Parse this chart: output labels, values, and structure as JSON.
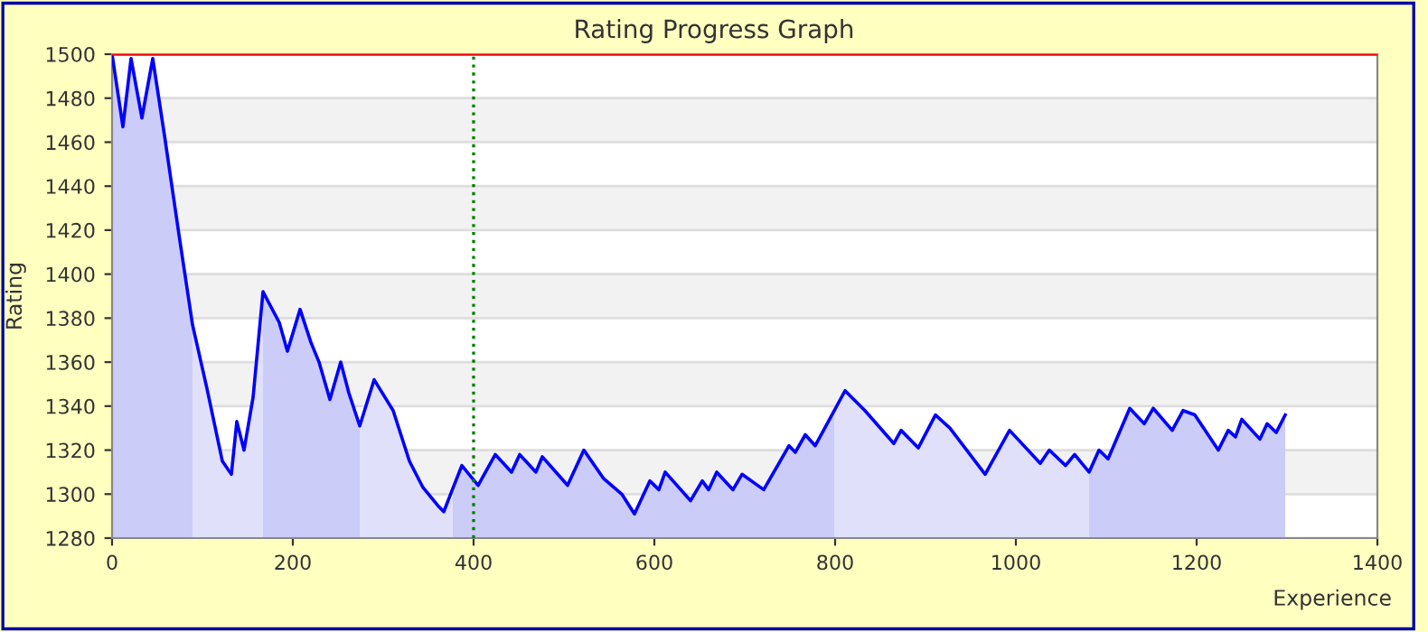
{
  "chart_data": {
    "type": "area",
    "title": "Rating Progress Graph",
    "xlabel": "Experience",
    "ylabel": "Rating",
    "xlim": [
      0,
      1400
    ],
    "xticks": [
      0,
      200,
      400,
      600,
      800,
      1000,
      1200,
      1400
    ],
    "ylim": [
      1280,
      1500
    ],
    "yticks": [
      1280,
      1300,
      1320,
      1340,
      1360,
      1380,
      1400,
      1420,
      1440,
      1460,
      1480,
      1500
    ],
    "grid": "y",
    "legend": false,
    "ref_lines": [
      {
        "axis": "x",
        "value": 400,
        "color": "#008000",
        "line_style": "dotted"
      },
      {
        "axis": "y",
        "value": 1500,
        "color": "#ff0000",
        "line_style": "solid"
      }
    ],
    "series": [
      {
        "color": "#ccccf8",
        "x": [
          0,
          12,
          21,
          33,
          45,
          58,
          74,
          89
        ],
        "values": [
          1500,
          1467,
          1498,
          1471,
          1498,
          1463,
          1418,
          1377
        ]
      },
      {
        "color": "#e0e0fa",
        "x": [
          89,
          105,
          122,
          132,
          138,
          146,
          156,
          167
        ],
        "values": [
          1377,
          1348,
          1315,
          1309,
          1333,
          1320,
          1344,
          1392
        ]
      },
      {
        "color": "#ccccf8",
        "x": [
          167,
          185,
          194,
          208,
          220,
          229,
          241,
          253,
          262,
          274
        ],
        "values": [
          1392,
          1378,
          1365,
          1384,
          1369,
          1360,
          1343,
          1360,
          1346,
          1331
        ]
      },
      {
        "color": "#e0e0fa",
        "x": [
          274,
          290,
          311,
          329,
          344,
          360,
          367,
          377
        ],
        "values": [
          1331,
          1352,
          1338,
          1315,
          1303,
          1295,
          1292,
          1299
        ]
      },
      {
        "color": "#ccccf8",
        "x": [
          377,
          387,
          405,
          424,
          442,
          451,
          469,
          476,
          504,
          522,
          544,
          564,
          578,
          595,
          605,
          612,
          640,
          653,
          660,
          669,
          687,
          697,
          721,
          749,
          756,
          767,
          778,
          799
        ],
        "values": [
          1299,
          1313,
          1304,
          1318,
          1310,
          1318,
          1310,
          1317,
          1304,
          1320,
          1307,
          1300,
          1291,
          1306,
          1302,
          1310,
          1297,
          1306,
          1302,
          1310,
          1302,
          1309,
          1302,
          1322,
          1319,
          1327,
          1322,
          1338
        ]
      },
      {
        "color": "#e0e0fa",
        "x": [
          799,
          811,
          833,
          865,
          873,
          892,
          911,
          927,
          966,
          993,
          1027,
          1037,
          1055,
          1065,
          1081
        ],
        "values": [
          1338,
          1347,
          1338,
          1323,
          1329,
          1321,
          1336,
          1330,
          1309,
          1329,
          1314,
          1320,
          1313,
          1318,
          1310
        ]
      },
      {
        "color": "#ccccf8",
        "x": [
          1081,
          1092,
          1102,
          1126,
          1142,
          1152,
          1173,
          1185,
          1198,
          1224,
          1235,
          1243,
          1250,
          1270,
          1278,
          1288,
          1298
        ],
        "values": [
          1310,
          1320,
          1316,
          1339,
          1332,
          1339,
          1329,
          1338,
          1336,
          1320,
          1329,
          1326,
          1334,
          1325,
          1332,
          1328,
          1336
        ]
      },
      {
        "type": "line",
        "color": "#0000ff",
        "x": [
          0,
          12,
          21,
          33,
          45,
          58,
          74,
          89,
          105,
          122,
          132,
          138,
          146,
          156,
          167,
          185,
          194,
          208,
          220,
          229,
          241,
          253,
          262,
          274,
          290,
          311,
          329,
          344,
          360,
          367,
          387,
          405,
          424,
          442,
          451,
          469,
          476,
          504,
          522,
          544,
          564,
          578,
          595,
          605,
          612,
          640,
          653,
          660,
          669,
          687,
          697,
          721,
          749,
          756,
          767,
          778,
          811,
          833,
          865,
          873,
          892,
          911,
          927,
          966,
          993,
          1027,
          1037,
          1055,
          1065,
          1081,
          1092,
          1102,
          1126,
          1142,
          1152,
          1173,
          1185,
          1198,
          1224,
          1235,
          1243,
          1250,
          1270,
          1278,
          1288,
          1298
        ],
        "values": [
          1500,
          1467,
          1498,
          1471,
          1498,
          1463,
          1418,
          1377,
          1348,
          1315,
          1309,
          1333,
          1320,
          1344,
          1392,
          1378,
          1365,
          1384,
          1369,
          1360,
          1343,
          1360,
          1346,
          1331,
          1352,
          1338,
          1315,
          1303,
          1295,
          1292,
          1313,
          1304,
          1318,
          1310,
          1318,
          1310,
          1317,
          1304,
          1320,
          1307,
          1300,
          1291,
          1306,
          1302,
          1310,
          1297,
          1306,
          1302,
          1310,
          1302,
          1309,
          1302,
          1322,
          1319,
          1327,
          1322,
          1347,
          1338,
          1323,
          1329,
          1321,
          1336,
          1330,
          1309,
          1329,
          1314,
          1320,
          1313,
          1318,
          1310,
          1320,
          1316,
          1339,
          1332,
          1339,
          1329,
          1338,
          1336,
          1320,
          1329,
          1326,
          1334,
          1325,
          1332,
          1328,
          1336
        ]
      }
    ]
  }
}
